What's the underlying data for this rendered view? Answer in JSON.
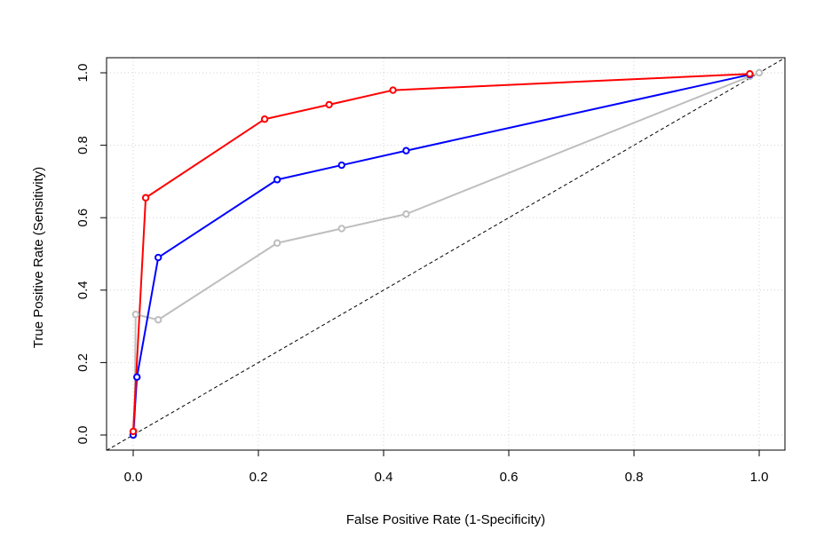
{
  "chart_data": {
    "type": "line",
    "title": "",
    "xlabel": "False Positive Rate (1-Specificity)",
    "ylabel": "True Positive Rate (Sensitivity)",
    "xlim": [
      0,
      1
    ],
    "ylim": [
      0,
      1
    ],
    "x_ticks": [
      "0.0",
      "0.2",
      "0.4",
      "0.6",
      "0.8",
      "1.0"
    ],
    "y_ticks": [
      "0.0",
      "0.2",
      "0.4",
      "0.6",
      "0.8",
      "1.0"
    ],
    "grid": true,
    "reference_line": {
      "x": [
        0,
        1
      ],
      "y": [
        0,
        1
      ],
      "style": "dashed",
      "color": "#000000"
    },
    "series": [
      {
        "color": "#bebebe",
        "x": [
          0.0,
          0.002,
          0.004,
          0.04,
          0.23,
          0.333,
          0.436,
          0.985,
          1.0
        ],
        "y": [
          0.0,
          0.01,
          0.333,
          0.318,
          0.53,
          0.57,
          0.61,
          0.99,
          1.0
        ]
      },
      {
        "color": "#0000ff",
        "x": [
          0.0,
          0.006,
          0.04,
          0.23,
          0.333,
          0.436,
          0.985
        ],
        "y": [
          0.0,
          0.16,
          0.49,
          0.705,
          0.745,
          0.785,
          0.995
        ]
      },
      {
        "color": "#ff0000",
        "x": [
          0.0,
          0.02,
          0.21,
          0.313,
          0.415,
          0.985
        ],
        "y": [
          0.01,
          0.655,
          0.872,
          0.912,
          0.952,
          0.997
        ]
      }
    ]
  }
}
